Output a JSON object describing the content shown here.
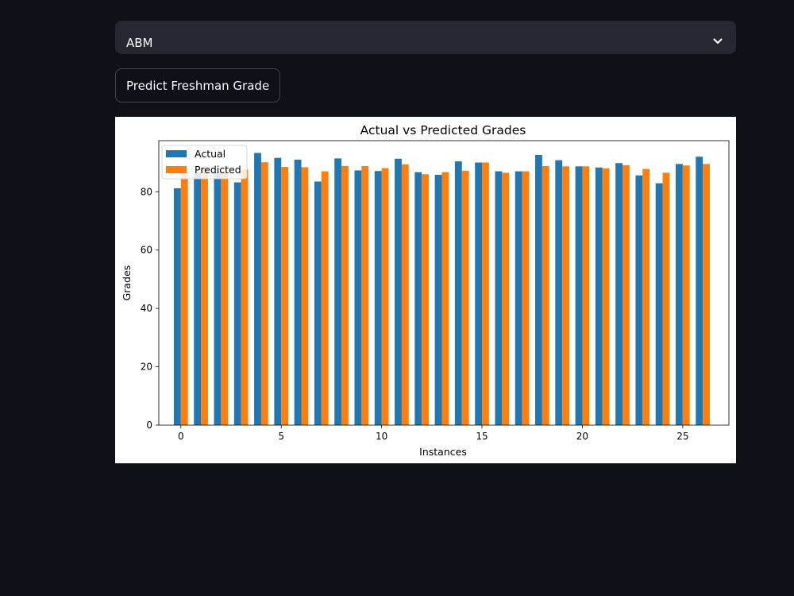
{
  "select": {
    "value": "ABM",
    "icon": "chevron-down-icon"
  },
  "button": {
    "label": "Predict Freshman Grade"
  },
  "colors": {
    "background": "#0e1117",
    "actual": "#1f77b4",
    "predicted": "#ff7f0e"
  },
  "chart_data": {
    "type": "bar",
    "title": "Actual vs Predicted Grades",
    "xlabel": "Instances",
    "ylabel": "Grades",
    "ylim": [
      0,
      97.5
    ],
    "xlim": [
      -1.1,
      27.3
    ],
    "xticks": [
      0,
      5,
      10,
      15,
      20,
      25
    ],
    "yticks": [
      0,
      20,
      40,
      60,
      80
    ],
    "grid": false,
    "legend": "top-left",
    "x": [
      0,
      1,
      2,
      3,
      4,
      5,
      6,
      7,
      8,
      9,
      10,
      11,
      12,
      13,
      14,
      15,
      16,
      17,
      18,
      19,
      20,
      21,
      22,
      23,
      24,
      25,
      26
    ],
    "series": [
      {
        "name": "Actual",
        "values": [
          81.2,
          86.5,
          86.8,
          83.2,
          93.3,
          91.6,
          91.0,
          83.5,
          91.4,
          87.3,
          87.1,
          91.3,
          86.7,
          85.8,
          90.4,
          90.0,
          87.0,
          87.0,
          92.6,
          90.8,
          88.7,
          88.3,
          89.8,
          85.6,
          82.9,
          89.5,
          92.0
        ]
      },
      {
        "name": "Predicted",
        "values": [
          87.0,
          87.8,
          87.1,
          87.7,
          90.1,
          88.5,
          88.4,
          87.0,
          88.8,
          88.8,
          88.1,
          89.4,
          86.0,
          86.7,
          87.2,
          90.0,
          86.5,
          87.0,
          88.8,
          88.7,
          88.7,
          88.0,
          89.1,
          87.8,
          86.5,
          89.0,
          89.5
        ]
      }
    ]
  }
}
